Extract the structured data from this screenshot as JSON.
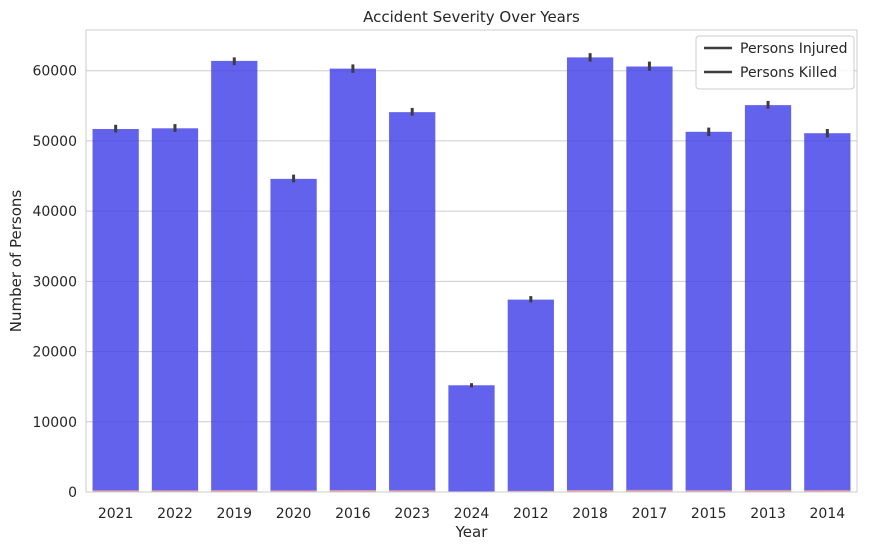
{
  "chart_data": {
    "type": "bar",
    "title": "Accident Severity Over Years",
    "xlabel": "Year",
    "ylabel": "Number of Persons",
    "categories": [
      "2021",
      "2022",
      "2019",
      "2020",
      "2016",
      "2023",
      "2024",
      "2012",
      "2018",
      "2017",
      "2015",
      "2013",
      "2014"
    ],
    "series": [
      {
        "name": "Persons Injured",
        "color": "#4040e8",
        "values": [
          51700,
          51800,
          61400,
          44600,
          60300,
          54100,
          15200,
          27400,
          61900,
          60600,
          51300,
          55100,
          51100
        ],
        "error_low": [
          51200,
          51300,
          60800,
          44100,
          59700,
          53600,
          14900,
          27000,
          61300,
          60000,
          50700,
          54600,
          50500
        ],
        "error_high": [
          52300,
          52400,
          61900,
          45200,
          60900,
          54700,
          15500,
          27900,
          62500,
          61300,
          51900,
          55700,
          51700
        ]
      },
      {
        "name": "Persons Killed",
        "color": "#e8a0a0",
        "values": [
          250,
          250,
          270,
          240,
          280,
          260,
          90,
          170,
          280,
          300,
          260,
          290,
          270
        ]
      }
    ],
    "yticks": [
      0,
      10000,
      20000,
      30000,
      40000,
      50000,
      60000
    ],
    "ylim": [
      0,
      65800
    ],
    "grid": true,
    "legend_position": "top-right"
  }
}
